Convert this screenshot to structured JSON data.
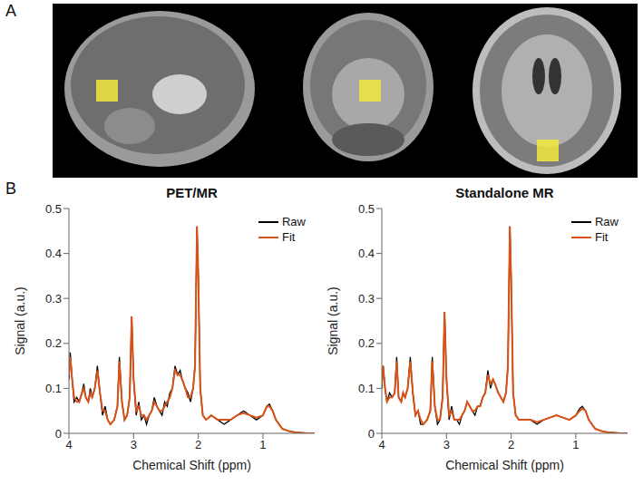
{
  "panel_labels": [
    "A",
    "B"
  ],
  "chart_data": [
    {
      "type": "line",
      "title": "PET/MR",
      "x_label": "Chemical Shift (ppm)",
      "y_label": "Signal (a.u.)",
      "xlim": [
        4,
        0.2
      ],
      "xticks": [
        4,
        3,
        2,
        1
      ],
      "ylim": [
        0,
        0.5
      ],
      "yticks": [
        0,
        0.1,
        0.2,
        0.3,
        0.4,
        0.5
      ],
      "grid": false,
      "legend": "upper right",
      "x": [
        4.0,
        3.98,
        3.95,
        3.92,
        3.88,
        3.84,
        3.8,
        3.77,
        3.74,
        3.7,
        3.67,
        3.64,
        3.6,
        3.56,
        3.52,
        3.48,
        3.44,
        3.4,
        3.36,
        3.3,
        3.25,
        3.22,
        3.18,
        3.14,
        3.1,
        3.06,
        3.03,
        3.0,
        2.96,
        2.92,
        2.88,
        2.84,
        2.8,
        2.76,
        2.72,
        2.68,
        2.64,
        2.6,
        2.56,
        2.52,
        2.48,
        2.44,
        2.4,
        2.36,
        2.32,
        2.28,
        2.25,
        2.2,
        2.16,
        2.12,
        2.08,
        2.05,
        2.02,
        2.0,
        1.97,
        1.93,
        1.88,
        1.8,
        1.7,
        1.6,
        1.5,
        1.4,
        1.3,
        1.2,
        1.1,
        1.0,
        0.94,
        0.9,
        0.85,
        0.8,
        0.7,
        0.6,
        0.5,
        0.4,
        0.3,
        0.2
      ],
      "series": [
        {
          "name": "Raw",
          "color": "#000000",
          "values": [
            0.12,
            0.18,
            0.12,
            0.07,
            0.08,
            0.07,
            0.09,
            0.11,
            0.08,
            0.07,
            0.1,
            0.08,
            0.1,
            0.15,
            0.09,
            0.04,
            0.06,
            0.03,
            0.02,
            0.03,
            0.06,
            0.17,
            0.07,
            0.03,
            0.04,
            0.08,
            0.26,
            0.12,
            0.04,
            0.07,
            0.03,
            0.04,
            0.02,
            0.04,
            0.05,
            0.08,
            0.06,
            0.05,
            0.04,
            0.07,
            0.06,
            0.09,
            0.1,
            0.15,
            0.13,
            0.14,
            0.12,
            0.1,
            0.09,
            0.07,
            0.1,
            0.15,
            0.46,
            0.35,
            0.1,
            0.04,
            0.03,
            0.04,
            0.03,
            0.02,
            0.03,
            0.04,
            0.05,
            0.04,
            0.03,
            0.04,
            0.06,
            0.065,
            0.05,
            0.03,
            0.01,
            0.005,
            0.002,
            0.001,
            0,
            0
          ]
        },
        {
          "name": "Fit",
          "color": "#d95319",
          "values": [
            0.13,
            0.17,
            0.12,
            0.08,
            0.07,
            0.07,
            0.09,
            0.1,
            0.08,
            0.07,
            0.09,
            0.08,
            0.1,
            0.14,
            0.09,
            0.05,
            0.05,
            0.03,
            0.02,
            0.03,
            0.06,
            0.16,
            0.07,
            0.03,
            0.04,
            0.08,
            0.26,
            0.12,
            0.05,
            0.06,
            0.04,
            0.04,
            0.03,
            0.04,
            0.05,
            0.07,
            0.06,
            0.05,
            0.05,
            0.06,
            0.07,
            0.08,
            0.1,
            0.14,
            0.13,
            0.13,
            0.12,
            0.1,
            0.08,
            0.08,
            0.1,
            0.15,
            0.46,
            0.35,
            0.1,
            0.04,
            0.03,
            0.04,
            0.03,
            0.03,
            0.03,
            0.04,
            0.045,
            0.04,
            0.035,
            0.04,
            0.06,
            0.06,
            0.05,
            0.03,
            0.01,
            0.005,
            0.002,
            0.001,
            0,
            0
          ]
        }
      ]
    },
    {
      "type": "line",
      "title": "Standalone MR",
      "x_label": "Chemical Shift (ppm)",
      "y_label": "Signal (a.u.)",
      "xlim": [
        4,
        0.2
      ],
      "xticks": [
        4,
        3,
        2,
        1
      ],
      "ylim": [
        0,
        0.5
      ],
      "yticks": [
        0,
        0.1,
        0.2,
        0.3,
        0.4,
        0.5
      ],
      "grid": false,
      "legend": "upper right",
      "x": [
        4.0,
        3.98,
        3.95,
        3.92,
        3.88,
        3.84,
        3.8,
        3.77,
        3.74,
        3.7,
        3.67,
        3.64,
        3.6,
        3.56,
        3.52,
        3.48,
        3.44,
        3.4,
        3.36,
        3.3,
        3.25,
        3.22,
        3.18,
        3.14,
        3.1,
        3.06,
        3.03,
        3.0,
        2.96,
        2.92,
        2.88,
        2.84,
        2.8,
        2.76,
        2.72,
        2.68,
        2.64,
        2.6,
        2.56,
        2.52,
        2.48,
        2.44,
        2.4,
        2.36,
        2.32,
        2.28,
        2.25,
        2.2,
        2.16,
        2.12,
        2.08,
        2.05,
        2.02,
        2.0,
        1.97,
        1.93,
        1.88,
        1.8,
        1.7,
        1.6,
        1.5,
        1.4,
        1.3,
        1.2,
        1.1,
        1.0,
        0.94,
        0.9,
        0.85,
        0.8,
        0.7,
        0.6,
        0.5,
        0.4,
        0.3,
        0.2
      ],
      "series": [
        {
          "name": "Raw",
          "color": "#000000",
          "values": [
            0.1,
            0.15,
            0.1,
            0.07,
            0.09,
            0.08,
            0.09,
            0.17,
            0.08,
            0.07,
            0.09,
            0.08,
            0.1,
            0.17,
            0.09,
            0.04,
            0.05,
            0.02,
            0.02,
            0.03,
            0.05,
            0.17,
            0.06,
            0.02,
            0.03,
            0.08,
            0.27,
            0.12,
            0.03,
            0.06,
            0.03,
            0.03,
            0.02,
            0.04,
            0.05,
            0.07,
            0.06,
            0.05,
            0.04,
            0.06,
            0.06,
            0.08,
            0.09,
            0.14,
            0.1,
            0.12,
            0.11,
            0.09,
            0.08,
            0.07,
            0.09,
            0.15,
            0.46,
            0.34,
            0.09,
            0.04,
            0.03,
            0.03,
            0.03,
            0.02,
            0.03,
            0.035,
            0.04,
            0.035,
            0.03,
            0.04,
            0.055,
            0.06,
            0.05,
            0.03,
            0.01,
            0.005,
            0.002,
            0.001,
            0,
            0
          ]
        },
        {
          "name": "Fit",
          "color": "#d95319",
          "values": [
            0.11,
            0.15,
            0.1,
            0.07,
            0.08,
            0.08,
            0.09,
            0.16,
            0.08,
            0.07,
            0.09,
            0.08,
            0.1,
            0.16,
            0.09,
            0.04,
            0.05,
            0.03,
            0.02,
            0.03,
            0.05,
            0.16,
            0.06,
            0.03,
            0.03,
            0.08,
            0.27,
            0.12,
            0.04,
            0.05,
            0.03,
            0.03,
            0.03,
            0.04,
            0.05,
            0.07,
            0.06,
            0.05,
            0.05,
            0.06,
            0.06,
            0.08,
            0.09,
            0.13,
            0.11,
            0.12,
            0.11,
            0.09,
            0.08,
            0.07,
            0.09,
            0.15,
            0.46,
            0.34,
            0.09,
            0.04,
            0.03,
            0.03,
            0.03,
            0.025,
            0.03,
            0.035,
            0.04,
            0.035,
            0.03,
            0.04,
            0.05,
            0.055,
            0.05,
            0.03,
            0.01,
            0.005,
            0.002,
            0.001,
            0,
            0
          ]
        }
      ]
    }
  ]
}
